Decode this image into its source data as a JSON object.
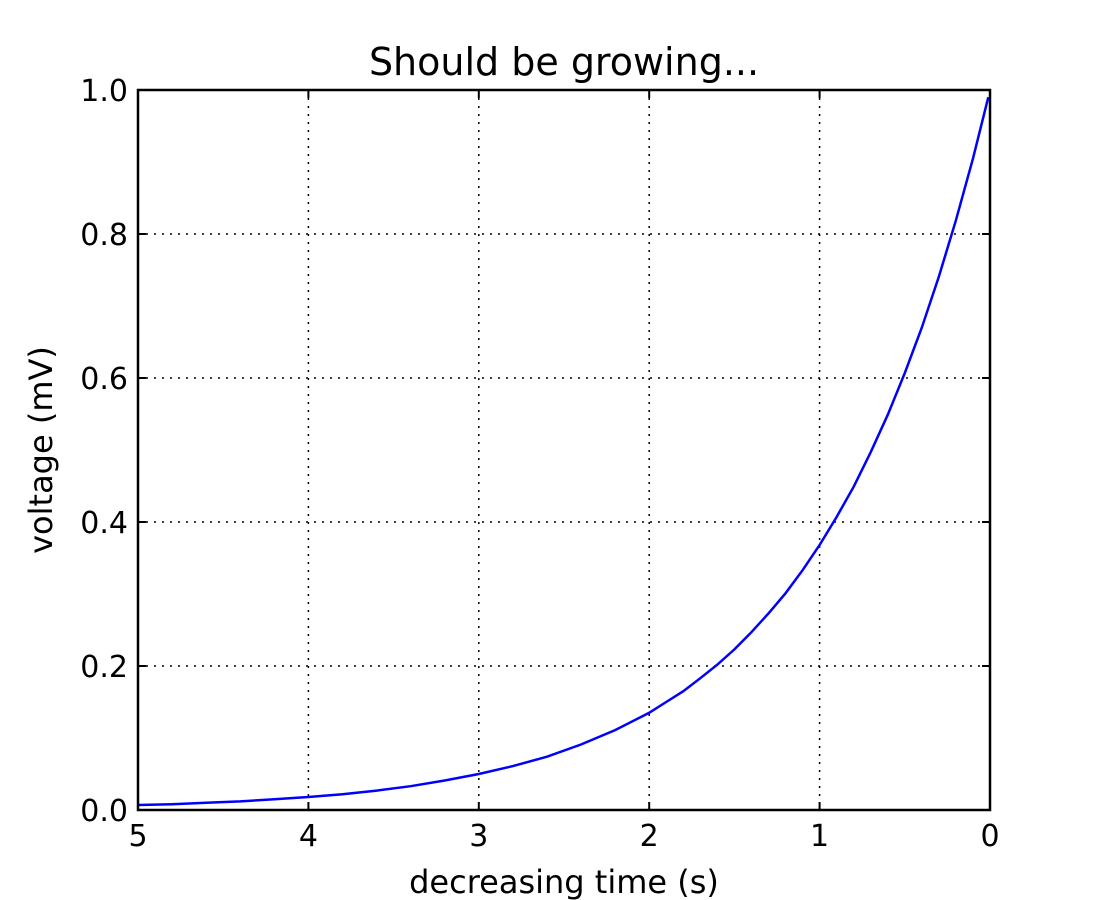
{
  "chart_data": {
    "type": "line",
    "title": "Should be growing...",
    "xlabel": "decreasing time (s)",
    "ylabel": "voltage (mV)",
    "xlim": [
      5,
      0
    ],
    "ylim": [
      0,
      1
    ],
    "x_ticks": [
      {
        "value": 5,
        "label": "5"
      },
      {
        "value": 4,
        "label": "4"
      },
      {
        "value": 3,
        "label": "3"
      },
      {
        "value": 2,
        "label": "2"
      },
      {
        "value": 1,
        "label": "1"
      },
      {
        "value": 0,
        "label": "0"
      }
    ],
    "y_ticks": [
      {
        "value": 0,
        "label": "0.0"
      },
      {
        "value": 0.2,
        "label": "0.2"
      },
      {
        "value": 0.4,
        "label": "0.4"
      },
      {
        "value": 0.6,
        "label": "0.6"
      },
      {
        "value": 0.8,
        "label": "0.8"
      },
      {
        "value": 1.0,
        "label": "1.0"
      }
    ],
    "grid": true,
    "series": [
      {
        "color": "#0000ff",
        "x": [
          0.01,
          0.1,
          0.2,
          0.3,
          0.4,
          0.5,
          0.6,
          0.7,
          0.8,
          0.9,
          1.0,
          1.1,
          1.2,
          1.3,
          1.4,
          1.5,
          1.6,
          1.7,
          1.8,
          1.9,
          2.0,
          2.2,
          2.4,
          2.6,
          2.8,
          3.0,
          3.2,
          3.4,
          3.6,
          3.8,
          4.0,
          4.2,
          4.4,
          4.6,
          4.8,
          5.0
        ],
        "y": [
          0.99,
          0.905,
          0.819,
          0.741,
          0.67,
          0.607,
          0.549,
          0.497,
          0.449,
          0.407,
          0.368,
          0.333,
          0.301,
          0.273,
          0.247,
          0.223,
          0.202,
          0.183,
          0.165,
          0.15,
          0.135,
          0.111,
          0.091,
          0.074,
          0.061,
          0.05,
          0.041,
          0.033,
          0.027,
          0.022,
          0.018,
          0.015,
          0.012,
          0.01,
          0.008,
          0.007
        ]
      }
    ]
  }
}
